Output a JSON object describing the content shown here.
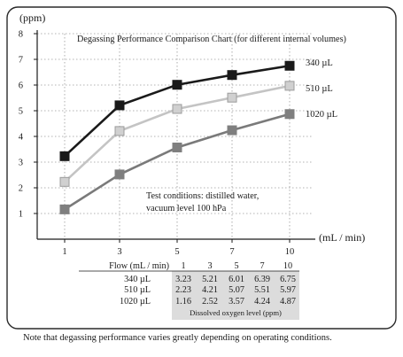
{
  "chart_data": {
    "type": "line",
    "title": "Degassing Performance Comparison Chart (for different internal volumes)",
    "ylabel": "(ppm)",
    "xlabel": "(mL / min)",
    "x": [
      1,
      3,
      5,
      7,
      10
    ],
    "x_tick_labels": [
      "1",
      "3",
      "5",
      "7",
      "10"
    ],
    "y_ticks": [
      1,
      2,
      3,
      4,
      5,
      6,
      7,
      8
    ],
    "ylim": [
      0,
      8
    ],
    "grid": true,
    "legend": "right, at line ends",
    "series": [
      {
        "name": "340 µL",
        "values": [
          3.23,
          5.21,
          6.01,
          6.39,
          6.75
        ],
        "color": "#1a1a1a",
        "marker_color": "#1a1a1a"
      },
      {
        "name": "510 µL",
        "values": [
          2.23,
          4.21,
          5.07,
          5.51,
          5.97
        ],
        "color": "#c4c4c4",
        "marker_color": "#d0d0d0"
      },
      {
        "name": "1020 µL",
        "values": [
          1.16,
          2.52,
          3.57,
          4.24,
          4.87
        ],
        "color": "#7a7a7a",
        "marker_color": "#7f7f7f"
      }
    ],
    "annotation": [
      "Test conditions: distilled water,",
      "vacuum level 100 hPa"
    ],
    "table": {
      "header_label": "Flow (mL / min)",
      "columns": [
        "1",
        "3",
        "5",
        "7",
        "10"
      ],
      "rows": [
        {
          "label": "340 µL",
          "values": [
            "3.23",
            "5.21",
            "6.01",
            "6.39",
            "6.75"
          ]
        },
        {
          "label": "510 µL",
          "values": [
            "2.23",
            "4.21",
            "5.07",
            "5.51",
            "5.97"
          ]
        },
        {
          "label": "1020 µL",
          "values": [
            "1.16",
            "2.52",
            "3.57",
            "4.24",
            "4.87"
          ]
        }
      ],
      "caption": "Dissolved oxygen level (ppm)"
    }
  },
  "note": "Note that degassing performance varies greatly depending on operating conditions."
}
